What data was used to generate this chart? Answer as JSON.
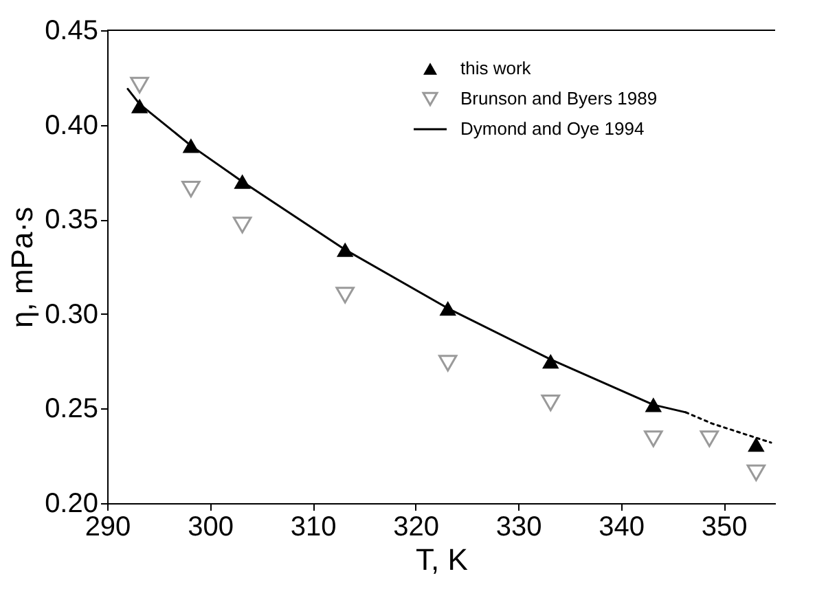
{
  "chart_data": {
    "type": "scatter",
    "xlabel": "T, K",
    "ylabel": "η, mPa·s",
    "xlim": [
      290,
      355
    ],
    "xticks": [
      290,
      300,
      310,
      320,
      330,
      340,
      350
    ],
    "ylim": [
      0.2,
      0.45
    ],
    "yticks": [
      {
        "value": 0.2,
        "label": "0.20"
      },
      {
        "value": 0.25,
        "label": "0.25"
      },
      {
        "value": 0.3,
        "label": "0.30"
      },
      {
        "value": 0.35,
        "label": "0.35"
      },
      {
        "value": 0.4,
        "label": "0.40"
      },
      {
        "value": 0.45,
        "label": "0.45"
      }
    ],
    "grid": false,
    "legend": "top right",
    "series": [
      {
        "name": "this work",
        "marker": "triangle",
        "color": "#000000",
        "x": [
          293.15,
          298.15,
          303.15,
          313.15,
          323.15,
          333.15,
          343.15,
          353.15
        ],
        "values": [
          0.41,
          0.389,
          0.37,
          0.334,
          0.303,
          0.275,
          0.252,
          0.231
        ]
      },
      {
        "name": "Brunson and Byers 1989",
        "marker": "triangle-down",
        "color": "#9a9a9a",
        "x": [
          293.15,
          298.15,
          303.15,
          313.15,
          323.15,
          333.15,
          343.15,
          348.6,
          353.15
        ],
        "values": [
          0.421,
          0.366,
          0.347,
          0.31,
          0.274,
          0.253,
          0.234,
          0.234,
          0.216
        ]
      },
      {
        "name": "Dymond and Oye 1994",
        "type": "line",
        "line_style": "solid",
        "color": "#000000",
        "x": [
          292,
          293.15,
          298.15,
          303.15,
          313.15,
          323.15,
          333.15,
          343.15,
          346.3
        ],
        "values": [
          0.419,
          0.411,
          0.389,
          0.37,
          0.334,
          0.303,
          0.276,
          0.252,
          0.248
        ]
      },
      {
        "type": "line",
        "line_style": "dotted",
        "color": "#000000",
        "x": [
          346.3,
          348.9,
          354.6
        ],
        "values": [
          0.248,
          0.242,
          0.232
        ]
      }
    ]
  }
}
